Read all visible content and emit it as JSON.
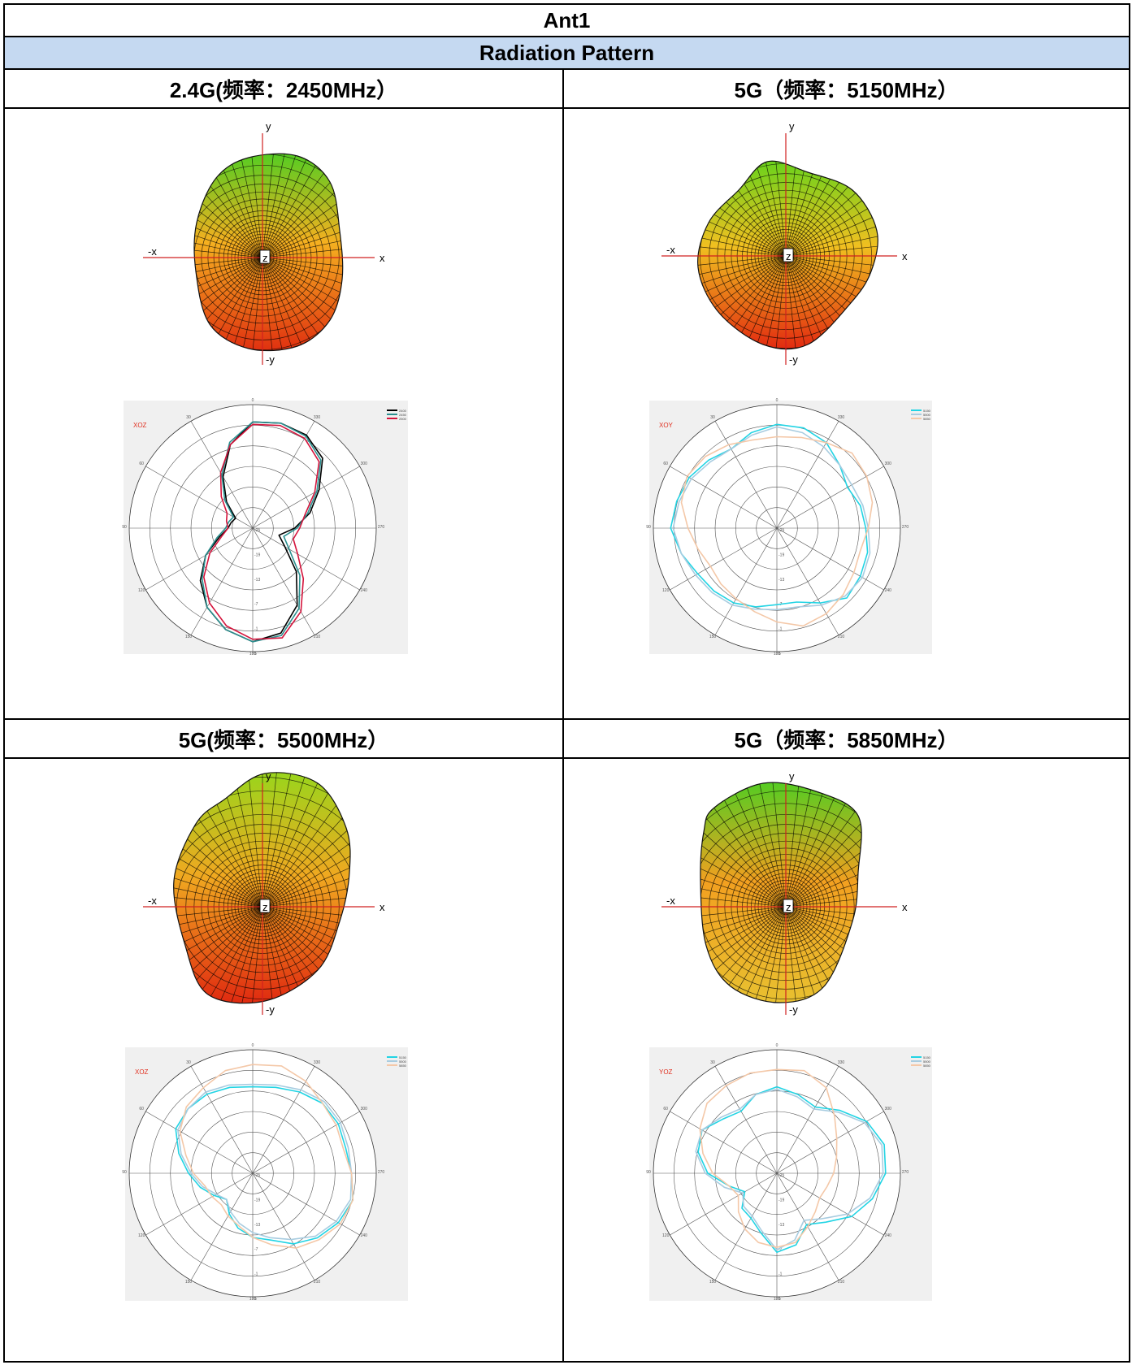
{
  "table": {
    "title": "Ant1",
    "section": "Radiation Pattern"
  },
  "icons": {
    "axis_y": "y",
    "axis_neg_y": "-y",
    "axis_x": "x",
    "axis_neg_x": "-x",
    "axis_z": "z"
  },
  "panels": [
    {
      "heading": "2.4G(频率：2450MHz）",
      "surface_colors": {
        "top": "#55cc22",
        "mid": "#f5b020",
        "bottom": "#e03010"
      },
      "polar": {
        "plane_label": "XOZ",
        "angle_labels": [
          "0",
          "330",
          "300",
          "270",
          "240",
          "210",
          "180",
          "150",
          "120",
          "90",
          "60",
          "30"
        ],
        "ring_labels": [
          "-25",
          "-19",
          "-13",
          "-7",
          "-1",
          "5"
        ],
        "legend": [
          {
            "name": "2400",
            "color": "#000000"
          },
          {
            "name": "2450",
            "color": "#2a8f8f"
          },
          {
            "name": "2500",
            "color": "#d4143c"
          }
        ]
      }
    },
    {
      "heading": "5G（频率：5150MHz）",
      "surface_colors": {
        "top": "#6ad21c",
        "mid": "#f0c020",
        "bottom": "#e22a10"
      },
      "polar": {
        "plane_label": "XOY",
        "angle_labels": [
          "0",
          "330",
          "300",
          "270",
          "240",
          "210",
          "180",
          "150",
          "120",
          "90",
          "60",
          "30"
        ],
        "ring_labels": [
          "-25",
          "-19",
          "-13",
          "-7",
          "-1",
          "5"
        ],
        "legend": [
          {
            "name": "5150",
            "color": "#22d4e4"
          },
          {
            "name": "5500",
            "color": "#a8cce0"
          },
          {
            "name": "5850",
            "color": "#f4c8a8"
          }
        ]
      }
    },
    {
      "heading": "5G(频率：5500MHz）",
      "surface_colors": {
        "top": "#9ad51c",
        "mid": "#f0a820",
        "bottom": "#e02a10"
      },
      "polar": {
        "plane_label": "XOZ",
        "angle_labels": [
          "0",
          "330",
          "300",
          "270",
          "240",
          "210",
          "180",
          "150",
          "120",
          "90",
          "60",
          "30"
        ],
        "ring_labels": [
          "-25",
          "-19",
          "-13",
          "-7",
          "-1",
          "5"
        ],
        "legend": [
          {
            "name": "5150",
            "color": "#22d4e4"
          },
          {
            "name": "5500",
            "color": "#a8cce0"
          },
          {
            "name": "5850",
            "color": "#f4c8a8"
          }
        ]
      }
    },
    {
      "heading": "5G（频率：5850MHz）",
      "surface_colors": {
        "top": "#55cc22",
        "mid": "#f2a020",
        "bottom": "#e8c030"
      },
      "polar": {
        "plane_label": "YOZ",
        "angle_labels": [
          "0",
          "330",
          "300",
          "270",
          "240",
          "210",
          "180",
          "150",
          "120",
          "90",
          "60",
          "30"
        ],
        "ring_labels": [
          "-25",
          "-19",
          "-13",
          "-7",
          "-1",
          "5"
        ],
        "legend": [
          {
            "name": "5150",
            "color": "#22d4e4"
          },
          {
            "name": "5500",
            "color": "#a8cce0"
          },
          {
            "name": "5850",
            "color": "#f4c8a8"
          }
        ]
      }
    }
  ]
}
